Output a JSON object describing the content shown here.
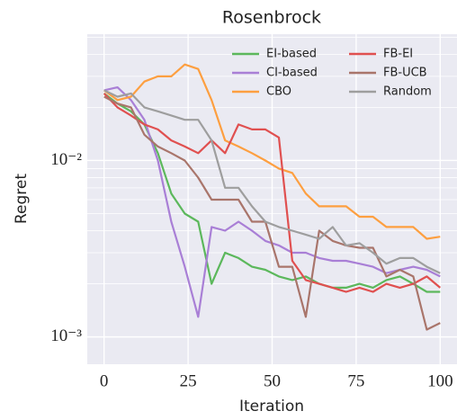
{
  "chart_data": {
    "type": "line",
    "title": "Rosenbrock",
    "xlabel": "Iteration",
    "ylabel": "Regret",
    "log_y": true,
    "grid": true,
    "legend": "upper right",
    "xlim": [
      -5,
      105
    ],
    "xticks": [
      0,
      25,
      50,
      75,
      100
    ],
    "ylim": [
      0.0007,
      0.052
    ],
    "yticks": [
      {
        "value": 0.001,
        "label": "10⁻³"
      },
      {
        "value": 0.01,
        "label": "10⁻²"
      }
    ],
    "yminorticks": [
      0.002,
      0.003,
      0.004,
      0.005,
      0.006,
      0.007,
      0.008,
      0.009,
      0.02,
      0.03,
      0.04,
      0.05
    ],
    "x": [
      0,
      4,
      8,
      12,
      16,
      20,
      24,
      28,
      32,
      36,
      40,
      44,
      48,
      52,
      56,
      60,
      64,
      68,
      72,
      76,
      80,
      84,
      88,
      92,
      96,
      100
    ],
    "series": [
      {
        "name": "EI-based",
        "color": "#5cb85c",
        "values": [
          0.024,
          0.021,
          0.019,
          0.016,
          0.011,
          0.0065,
          0.005,
          0.0045,
          0.002,
          0.003,
          0.0028,
          0.0025,
          0.0024,
          0.0022,
          0.0021,
          0.0022,
          0.002,
          0.0019,
          0.0019,
          0.002,
          0.0019,
          0.0021,
          0.0022,
          0.002,
          0.0018,
          0.0018
        ]
      },
      {
        "name": "CI-based",
        "color": "#a97fd6",
        "values": [
          0.025,
          0.026,
          0.022,
          0.017,
          0.01,
          0.0045,
          0.0025,
          0.0013,
          0.0042,
          0.004,
          0.0045,
          0.004,
          0.0035,
          0.0033,
          0.003,
          0.003,
          0.0028,
          0.0027,
          0.0027,
          0.0026,
          0.0025,
          0.0023,
          0.0024,
          0.0025,
          0.0024,
          0.0022
        ]
      },
      {
        "name": "CBO",
        "color": "#fd9f40",
        "values": [
          0.025,
          0.022,
          0.023,
          0.028,
          0.03,
          0.03,
          0.035,
          0.033,
          0.022,
          0.013,
          0.012,
          0.011,
          0.01,
          0.009,
          0.0085,
          0.0065,
          0.0055,
          0.0055,
          0.0055,
          0.0048,
          0.0048,
          0.0042,
          0.0042,
          0.0042,
          0.0036,
          0.0037
        ]
      },
      {
        "name": "FB-EI",
        "color": "#e05050",
        "values": [
          0.024,
          0.02,
          0.018,
          0.016,
          0.015,
          0.013,
          0.012,
          0.011,
          0.013,
          0.011,
          0.016,
          0.015,
          0.015,
          0.0135,
          0.0027,
          0.0021,
          0.002,
          0.0019,
          0.0018,
          0.0019,
          0.0018,
          0.002,
          0.0019,
          0.002,
          0.0022,
          0.0019
        ]
      },
      {
        "name": "FB-UCB",
        "color": "#a9756b",
        "values": [
          0.023,
          0.021,
          0.02,
          0.014,
          0.012,
          0.011,
          0.01,
          0.008,
          0.006,
          0.006,
          0.006,
          0.0045,
          0.0045,
          0.0025,
          0.0025,
          0.0013,
          0.004,
          0.0035,
          0.0033,
          0.0032,
          0.0032,
          0.0022,
          0.0024,
          0.0022,
          0.0011,
          0.0012
        ]
      },
      {
        "name": "Random",
        "color": "#9e9e9e",
        "values": [
          0.025,
          0.023,
          0.024,
          0.02,
          0.019,
          0.018,
          0.017,
          0.017,
          0.013,
          0.007,
          0.007,
          0.0055,
          0.0045,
          0.0042,
          0.004,
          0.0038,
          0.0036,
          0.0042,
          0.0033,
          0.0034,
          0.003,
          0.0026,
          0.0028,
          0.0028,
          0.0025,
          0.0023
        ]
      }
    ]
  }
}
